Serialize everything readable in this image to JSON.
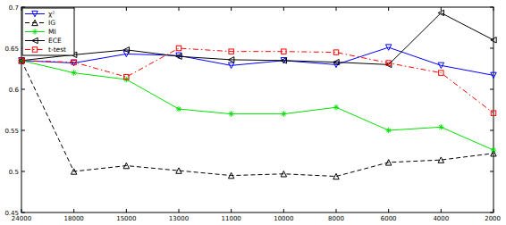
{
  "chart_data": {
    "type": "line",
    "categories": [
      "24000",
      "18000",
      "15000",
      "13000",
      "11000",
      "10000",
      "8000",
      "6000",
      "4000",
      "2000"
    ],
    "series": [
      {
        "name": "χ²",
        "color": "#0000ff",
        "marker": "triangle-down",
        "line_style": "solid",
        "values": [
          0.635,
          0.632,
          0.643,
          0.641,
          0.629,
          0.635,
          0.63,
          0.651,
          0.629,
          0.617
        ]
      },
      {
        "name": "IG",
        "color": "#000000",
        "marker": "triangle-up",
        "line_style": "dashed",
        "values": [
          0.635,
          0.5,
          0.507,
          0.501,
          0.495,
          0.497,
          0.494,
          0.511,
          0.514,
          0.522
        ]
      },
      {
        "name": "MI",
        "color": "#00e000",
        "marker": "star",
        "line_style": "solid",
        "values": [
          0.635,
          0.62,
          0.612,
          0.576,
          0.57,
          0.57,
          0.578,
          0.55,
          0.554,
          0.526
        ]
      },
      {
        "name": "ECE",
        "color": "#000000",
        "marker": "triangle-left",
        "line_style": "solid",
        "values": [
          0.635,
          0.642,
          0.648,
          0.64,
          0.636,
          0.635,
          0.633,
          0.63,
          0.693,
          0.66
        ]
      },
      {
        "name": "t-test",
        "color": "#ff0000",
        "marker": "square",
        "line_style": "dashdot",
        "values": [
          0.635,
          0.633,
          0.615,
          0.65,
          0.646,
          0.646,
          0.645,
          0.632,
          0.62,
          0.571
        ]
      }
    ],
    "ylim": [
      0.45,
      0.7
    ],
    "yticks": [
      0.45,
      0.5,
      0.55,
      0.6,
      0.65,
      0.7
    ],
    "grid": false,
    "legend": "top-left"
  }
}
